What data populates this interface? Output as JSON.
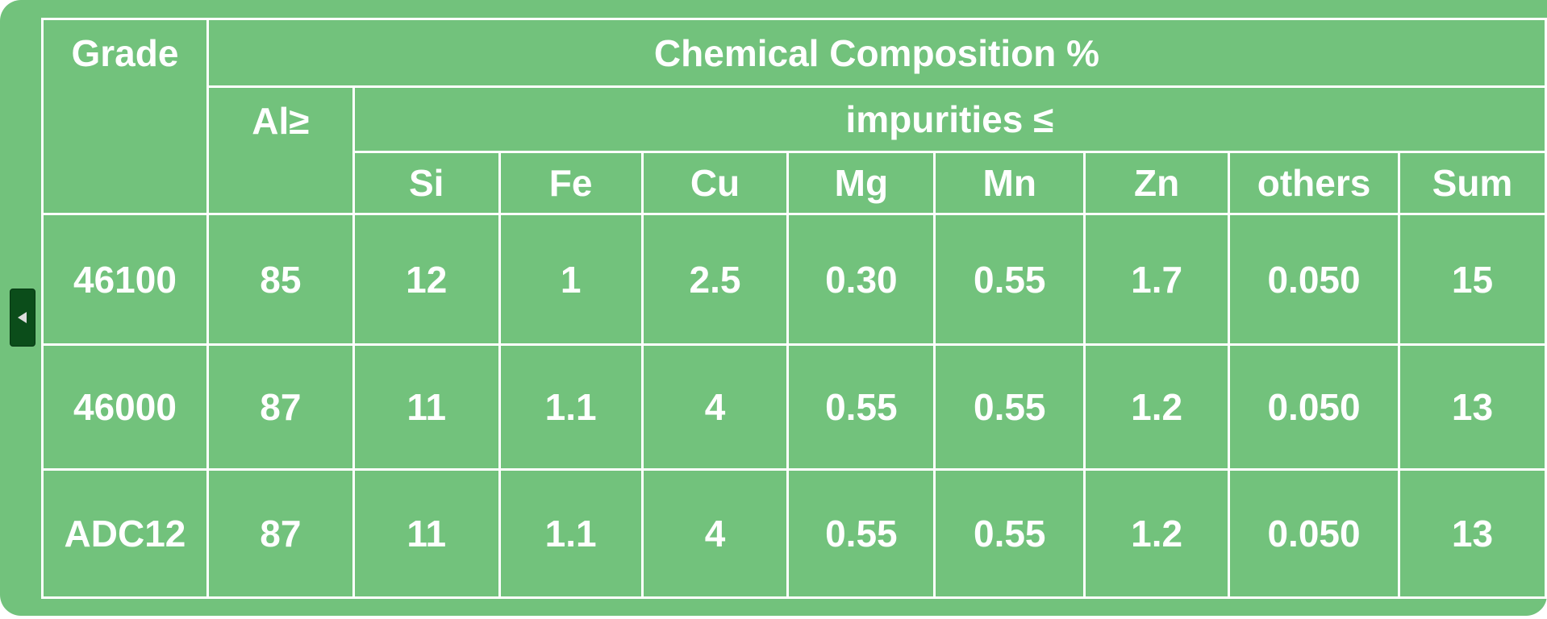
{
  "table": {
    "header": {
      "grade": "Grade",
      "composition": "Chemical Composition %",
      "al": "Al≥",
      "impurities": "impurities ≤",
      "columns": [
        "Si",
        "Fe",
        "Cu",
        "Mg",
        "Mn",
        "Zn",
        "others",
        "Sum"
      ]
    },
    "rows": [
      [
        "46100",
        "85",
        "12",
        "1",
        "2.5",
        "0.30",
        "0.55",
        "1.7",
        "0.050",
        "15"
      ],
      [
        "46000",
        "87",
        "11",
        "1.1",
        "4",
        "0.55",
        "0.55",
        "1.2",
        "0.050",
        "13"
      ],
      [
        "ADC12",
        "87",
        "11",
        "1.1",
        "4",
        "0.55",
        "0.55",
        "1.2",
        "0.050",
        "13"
      ]
    ]
  }
}
